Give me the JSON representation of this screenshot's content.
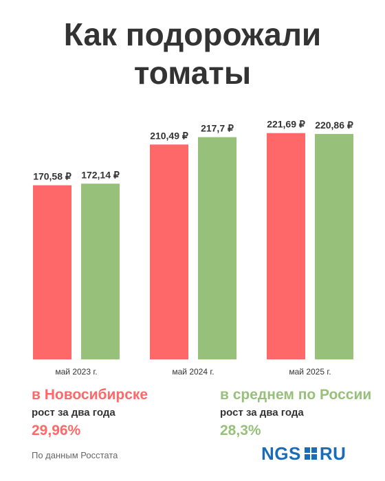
{
  "title_line1": "Как подорожали",
  "title_line2": "томаты",
  "colors": {
    "novosibirsk": "#ff6868",
    "russia": "#97c07a",
    "text": "#333333"
  },
  "chart_data": {
    "type": "bar",
    "categories": [
      "май 2023 г.",
      "май 2024 г.",
      "май 2025 г."
    ],
    "series": [
      {
        "name": "в Новосибирске",
        "values": [
          170.58,
          210.49,
          221.69
        ],
        "value_labels": [
          "170,58 ₽",
          "210,49 ₽",
          "221,69 ₽"
        ]
      },
      {
        "name": "в среднем по России",
        "values": [
          172.14,
          217.7,
          220.86
        ],
        "value_labels": [
          "172,14 ₽",
          "217,7 ₽",
          "220,86 ₽"
        ]
      }
    ],
    "ylim": [
      0,
      240
    ],
    "grid": false
  },
  "legend": {
    "novosibirsk": {
      "label": "в Новосибирске",
      "sub": "рост за два года",
      "pct": "29,96%"
    },
    "russia": {
      "label": "в среднем по России",
      "sub": "рост за два года",
      "pct": "28,3%"
    }
  },
  "source": "По данным Росстата",
  "logo": {
    "left": "NGS",
    "right": "RU"
  }
}
